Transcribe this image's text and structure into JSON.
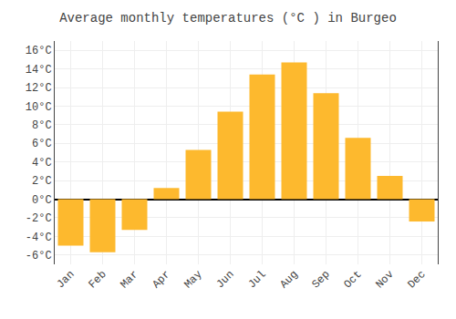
{
  "chart_data": {
    "type": "bar",
    "title": "Average monthly temperatures (°C ) in Burgeo",
    "categories": [
      "Jan",
      "Feb",
      "Mar",
      "Apr",
      "May",
      "Jun",
      "Jul",
      "Aug",
      "Sep",
      "Oct",
      "Nov",
      "Dec"
    ],
    "values": [
      -5.0,
      -5.7,
      -3.3,
      1.2,
      5.3,
      9.4,
      13.4,
      14.7,
      11.4,
      6.6,
      2.5,
      -2.4
    ],
    "color": "#FDB92E",
    "ylim": [
      -7,
      17
    ],
    "yticks": [
      {
        "value": -6,
        "label": "-6°C"
      },
      {
        "value": -4,
        "label": "-4°C"
      },
      {
        "value": -2,
        "label": "-2°C"
      },
      {
        "value": 0,
        "label": "0°C"
      },
      {
        "value": 2,
        "label": "2°C"
      },
      {
        "value": 4,
        "label": "4°C"
      },
      {
        "value": 6,
        "label": "6°C"
      },
      {
        "value": 8,
        "label": "8°C"
      },
      {
        "value": 10,
        "label": "10°C"
      },
      {
        "value": 12,
        "label": "12°C"
      },
      {
        "value": 14,
        "label": "14°C"
      },
      {
        "value": 16,
        "label": "16°C"
      }
    ],
    "grid": true
  }
}
